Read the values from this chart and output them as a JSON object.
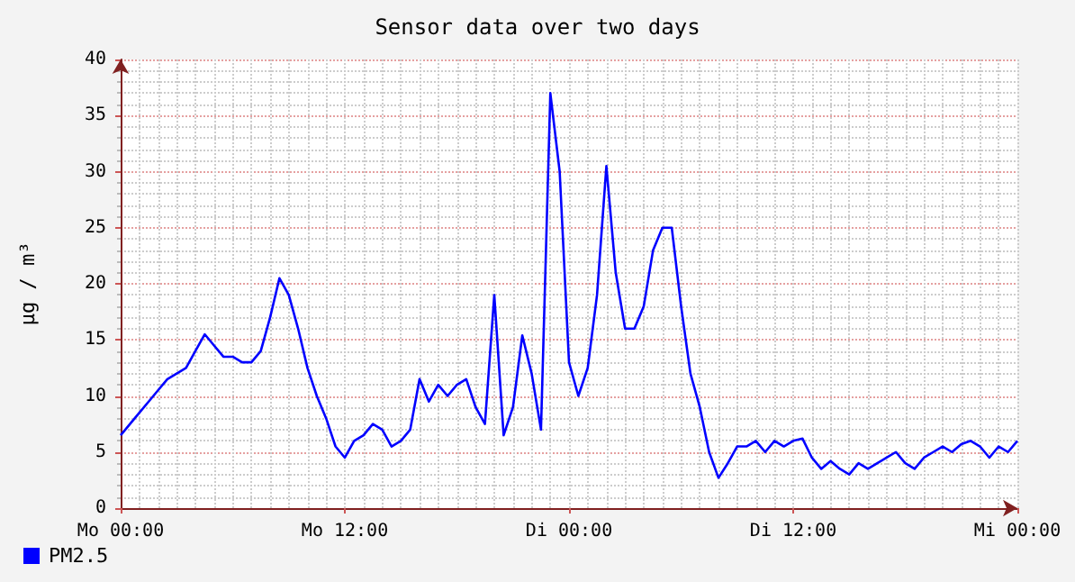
{
  "chart_data": {
    "type": "line",
    "title": "Sensor data over two days",
    "ylabel": "µg / m³",
    "categories": [
      "Mo 00:00",
      null,
      null,
      null,
      null,
      null,
      null,
      null,
      null,
      null,
      null,
      null,
      null,
      null,
      null,
      null,
      null,
      null,
      null,
      null,
      null,
      null,
      null,
      null,
      "Mo 12:00",
      null,
      null,
      null,
      null,
      null,
      null,
      null,
      null,
      null,
      null,
      null,
      null,
      null,
      null,
      null,
      null,
      null,
      null,
      null,
      null,
      null,
      null,
      null,
      "Di 00:00",
      null,
      null,
      null,
      null,
      null,
      null,
      null,
      null,
      null,
      null,
      null,
      null,
      null,
      null,
      null,
      null,
      null,
      null,
      null,
      null,
      null,
      null,
      null,
      "Di 12:00",
      null,
      null,
      null,
      null,
      null,
      null,
      null,
      null,
      null,
      null,
      null,
      null,
      null,
      null,
      null,
      null,
      null,
      null,
      null,
      null,
      null,
      null,
      null,
      "Mi 00:00"
    ],
    "ylim": [
      0,
      40
    ],
    "yticks": [
      0,
      5,
      10,
      15,
      20,
      25,
      30,
      35,
      40
    ],
    "grid": true,
    "legend": "bottom left",
    "marker": "none",
    "line_style": "solid",
    "series": [
      {
        "name": "PM2.5",
        "color": "#0000ff",
        "values": [
          6.5,
          7.5,
          8.5,
          9.5,
          10.5,
          11.5,
          12,
          12.5,
          14,
          15.5,
          14.5,
          13.5,
          13.5,
          13,
          13,
          14,
          17,
          20.5,
          19,
          16,
          12.5,
          10,
          8,
          5.5,
          4.5,
          6,
          6.5,
          7.5,
          7,
          5.5,
          6,
          7,
          11.5,
          9.5,
          11,
          10,
          11,
          11.5,
          9,
          7.5,
          19,
          6.5,
          9,
          15.4,
          12,
          7,
          37,
          30,
          13,
          10,
          12.5,
          19,
          30.5,
          21,
          16,
          16,
          18,
          23,
          25,
          25,
          18,
          12,
          9,
          5,
          2.7,
          4,
          5.5,
          5.5,
          6,
          5,
          6,
          5.5,
          6,
          6.2,
          4.5,
          3.5,
          4.2,
          3.5,
          3,
          4,
          3.5,
          4,
          4.5,
          5,
          4,
          3.5,
          4.5,
          5,
          5.5,
          5,
          5.7,
          6,
          5.5,
          4.5,
          5.5,
          5,
          6
        ]
      }
    ]
  }
}
